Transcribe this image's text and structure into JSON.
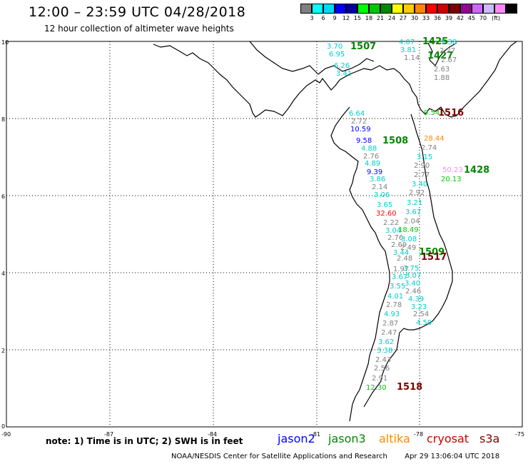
{
  "header": {
    "title": "12:00 – 23:59 UTC 04/28/2018",
    "subtitle": "12 hour collection of altimeter wave heights"
  },
  "color_scale": {
    "unit": "(ft)",
    "colors": [
      "#808080",
      "#00ffff",
      "#00d8ff",
      "#0000ff",
      "#0000a0",
      "#00ff00",
      "#00c800",
      "#008800",
      "#ffff00",
      "#ffcc00",
      "#ff8800",
      "#ff0000",
      "#cc0000",
      "#800000",
      "#990099",
      "#cc66ff",
      "#ccbbff",
      "#ff88ff",
      "#000000"
    ],
    "labels": [
      "3",
      "6",
      "9",
      "12",
      "15",
      "18",
      "21",
      "24",
      "27",
      "30",
      "33",
      "36",
      "39",
      "42",
      "45",
      "70"
    ]
  },
  "axes": {
    "x_ticks": [
      "-90",
      "-87",
      "-84",
      "-81",
      "-78",
      "-75"
    ],
    "y_ticks": [
      "10",
      "8",
      "6",
      "4",
      "2",
      "0"
    ]
  },
  "passes": [
    {
      "id": "1507",
      "color": "#008800"
    },
    {
      "id": "1425",
      "color": "#008800"
    },
    {
      "id": "1427",
      "color": "#008800"
    },
    {
      "id": "1516",
      "color": "#800000"
    },
    {
      "id": "1508",
      "color": "#008800"
    },
    {
      "id": "1428",
      "color": "#008800"
    },
    {
      "id": "1509",
      "color": "#008800"
    },
    {
      "id": "1517",
      "color": "#800000"
    },
    {
      "id": "1518",
      "color": "#800000"
    }
  ],
  "observations": [
    {
      "t": "3.70",
      "c": "#00cccc"
    },
    {
      "t": "6.95",
      "c": "#00cccc"
    },
    {
      "t": "6.26",
      "c": "#00cccc"
    },
    {
      "t": "3.41",
      "c": "#00cccc"
    },
    {
      "t": "4.07",
      "c": "#00cccc"
    },
    {
      "t": "3.81",
      "c": "#00cccc"
    },
    {
      "t": "1.14",
      "c": "#808080"
    },
    {
      "t": "5.38",
      "c": "#00cccc"
    },
    {
      "t": "2.27",
      "c": "#808080"
    },
    {
      "t": "2.67",
      "c": "#808080"
    },
    {
      "t": "2.63",
      "c": "#808080"
    },
    {
      "t": "1.88",
      "c": "#808080"
    },
    {
      "t": "6.64",
      "c": "#00cccc"
    },
    {
      "t": "2.72",
      "c": "#808080"
    },
    {
      "t": "10.59",
      "c": "#0000ff"
    },
    {
      "t": "9.58",
      "c": "#0000ff"
    },
    {
      "t": "4.88",
      "c": "#00cccc"
    },
    {
      "t": "2.76",
      "c": "#808080"
    },
    {
      "t": "4.89",
      "c": "#00cccc"
    },
    {
      "t": "9.39",
      "c": "#0000ff"
    },
    {
      "t": "3.86",
      "c": "#00cccc"
    },
    {
      "t": "2.14",
      "c": "#808080"
    },
    {
      "t": "3.06",
      "c": "#00cccc"
    },
    {
      "t": "3.65",
      "c": "#00cccc"
    },
    {
      "t": "32.60",
      "c": "#ff0000"
    },
    {
      "t": "2.22",
      "c": "#808080"
    },
    {
      "t": "3.04",
      "c": "#00cccc"
    },
    {
      "t": "2.76",
      "c": "#808080"
    },
    {
      "t": "2.69",
      "c": "#808080"
    },
    {
      "t": "2.49",
      "c": "#808080"
    },
    {
      "t": "3.44",
      "c": "#00cccc"
    },
    {
      "t": "1.97",
      "c": "#808080"
    },
    {
      "t": "3.67",
      "c": "#00cccc"
    },
    {
      "t": "3.55",
      "c": "#00cccc"
    },
    {
      "t": "4.01",
      "c": "#00cccc"
    },
    {
      "t": "2.78",
      "c": "#808080"
    },
    {
      "t": "4.93",
      "c": "#00cccc"
    },
    {
      "t": "2.87",
      "c": "#808080"
    },
    {
      "t": "2.47",
      "c": "#808080"
    },
    {
      "t": "3.62",
      "c": "#00cccc"
    },
    {
      "t": "3.38",
      "c": "#00cccc"
    },
    {
      "t": "2.43",
      "c": "#808080"
    },
    {
      "t": "2.56",
      "c": "#808080"
    },
    {
      "t": "2.91",
      "c": "#808080"
    },
    {
      "t": "12.30",
      "c": "#00cc00"
    },
    {
      "t": "9.54",
      "c": "#00cc00"
    },
    {
      "t": "28.44",
      "c": "#ff8800"
    },
    {
      "t": "2.74",
      "c": "#808080"
    },
    {
      "t": "3.15",
      "c": "#00cccc"
    },
    {
      "t": "2.90",
      "c": "#808080"
    },
    {
      "t": "2.77",
      "c": "#808080"
    },
    {
      "t": "3.40",
      "c": "#00cccc"
    },
    {
      "t": "2.92",
      "c": "#808080"
    },
    {
      "t": "3.21",
      "c": "#00cccc"
    },
    {
      "t": "3.67",
      "c": "#00cccc"
    },
    {
      "t": "2.04",
      "c": "#808080"
    },
    {
      "t": "18.49",
      "c": "#00cc00"
    },
    {
      "t": "3.08",
      "c": "#00cccc"
    },
    {
      "t": "2.48",
      "c": "#808080"
    },
    {
      "t": "3.75",
      "c": "#00cccc"
    },
    {
      "t": "3.07",
      "c": "#00cccc"
    },
    {
      "t": "3.40",
      "c": "#00cccc"
    },
    {
      "t": "2.46",
      "c": "#808080"
    },
    {
      "t": "4.39",
      "c": "#00cccc"
    },
    {
      "t": "3.23",
      "c": "#00cccc"
    },
    {
      "t": "2.54",
      "c": "#808080"
    },
    {
      "t": "4.50",
      "c": "#00cccc"
    },
    {
      "t": "50.23",
      "c": "#ff88ff"
    },
    {
      "t": "20.13",
      "c": "#00cc00"
    }
  ],
  "note": "note: 1) Time is in UTC; 2) SWH is in feet",
  "legend": [
    {
      "name": "jason2",
      "color": "#0000ff"
    },
    {
      "name": "jason3",
      "color": "#008800"
    },
    {
      "name": "altika",
      "color": "#ff8800"
    },
    {
      "name": "cryosat",
      "color": "#cc0000"
    },
    {
      "name": "s3a",
      "color": "#800000"
    }
  ],
  "footer": {
    "credit": "NOAA/NESDIS Center for Satellite Applications and Research",
    "timestamp": "Apr 29 13:06:04 UTC 2018"
  }
}
